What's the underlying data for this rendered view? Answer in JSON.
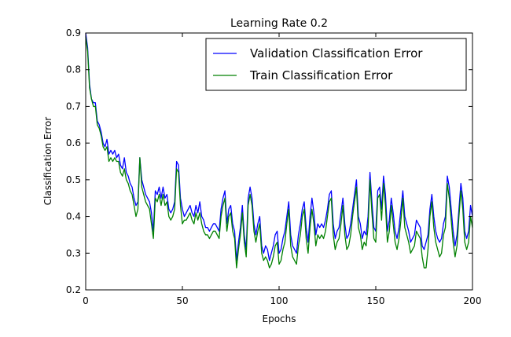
{
  "chart_data": {
    "type": "line",
    "title": "Learning Rate 0.2",
    "xlabel": "Epochs",
    "ylabel": "Classification Error",
    "xlim": [
      0,
      200
    ],
    "ylim": [
      0.2,
      0.9
    ],
    "xticks": [
      "0",
      "50",
      "100",
      "150",
      "200"
    ],
    "yticks": [
      "0.2",
      "0.3",
      "0.4",
      "0.5",
      "0.6",
      "0.7",
      "0.8",
      "0.9"
    ],
    "legend_position": "top-right",
    "grid": false,
    "series": [
      {
        "name": "Validation Classification Error",
        "color": "#0000ff",
        "x": [
          0,
          1,
          2,
          3,
          4,
          5,
          6,
          7,
          8,
          9,
          10,
          11,
          12,
          13,
          14,
          15,
          16,
          17,
          18,
          19,
          20,
          21,
          22,
          23,
          24,
          25,
          26,
          27,
          28,
          29,
          30,
          31,
          32,
          33,
          34,
          35,
          36,
          37,
          38,
          39,
          40,
          41,
          42,
          43,
          44,
          45,
          46,
          47,
          48,
          49,
          50,
          51,
          52,
          53,
          54,
          55,
          56,
          57,
          58,
          59,
          60,
          61,
          62,
          63,
          64,
          65,
          66,
          67,
          68,
          69,
          70,
          71,
          72,
          73,
          74,
          75,
          76,
          77,
          78,
          79,
          80,
          81,
          82,
          83,
          84,
          85,
          86,
          87,
          88,
          89,
          90,
          91,
          92,
          93,
          94,
          95,
          96,
          97,
          98,
          99,
          100,
          101,
          102,
          103,
          104,
          105,
          106,
          107,
          108,
          109,
          110,
          111,
          112,
          113,
          114,
          115,
          116,
          117,
          118,
          119,
          120,
          121,
          122,
          123,
          124,
          125,
          126,
          127,
          128,
          129,
          130,
          131,
          132,
          133,
          134,
          135,
          136,
          137,
          138,
          139,
          140,
          141,
          142,
          143,
          144,
          145,
          146,
          147,
          148,
          149,
          150,
          151,
          152,
          153,
          154,
          155,
          156,
          157,
          158,
          159,
          160,
          161,
          162,
          163,
          164,
          165,
          166,
          167,
          168,
          169,
          170,
          171,
          172,
          173,
          174,
          175,
          176,
          177,
          178,
          179,
          180,
          181,
          182,
          183,
          184,
          185,
          186,
          187,
          188,
          189,
          190,
          191,
          192,
          193,
          194,
          195,
          196,
          197,
          198,
          199,
          200
        ],
        "values": [
          0.9,
          0.86,
          0.76,
          0.72,
          0.71,
          0.71,
          0.66,
          0.65,
          0.63,
          0.6,
          0.59,
          0.61,
          0.57,
          0.58,
          0.57,
          0.58,
          0.56,
          0.57,
          0.54,
          0.53,
          0.56,
          0.52,
          0.51,
          0.49,
          0.48,
          0.45,
          0.43,
          0.44,
          0.56,
          0.5,
          0.48,
          0.46,
          0.45,
          0.44,
          0.41,
          0.36,
          0.47,
          0.46,
          0.48,
          0.45,
          0.48,
          0.45,
          0.46,
          0.42,
          0.41,
          0.42,
          0.44,
          0.55,
          0.54,
          0.45,
          0.42,
          0.4,
          0.41,
          0.42,
          0.43,
          0.41,
          0.4,
          0.43,
          0.41,
          0.44,
          0.4,
          0.39,
          0.37,
          0.37,
          0.36,
          0.37,
          0.38,
          0.38,
          0.37,
          0.36,
          0.42,
          0.45,
          0.47,
          0.38,
          0.42,
          0.43,
          0.38,
          0.36,
          0.28,
          0.33,
          0.37,
          0.43,
          0.35,
          0.31,
          0.45,
          0.48,
          0.45,
          0.38,
          0.35,
          0.38,
          0.4,
          0.32,
          0.3,
          0.32,
          0.31,
          0.28,
          0.3,
          0.32,
          0.35,
          0.36,
          0.3,
          0.31,
          0.34,
          0.36,
          0.4,
          0.44,
          0.35,
          0.32,
          0.31,
          0.3,
          0.35,
          0.38,
          0.42,
          0.44,
          0.37,
          0.33,
          0.4,
          0.45,
          0.41,
          0.35,
          0.38,
          0.37,
          0.38,
          0.37,
          0.39,
          0.42,
          0.46,
          0.47,
          0.38,
          0.34,
          0.36,
          0.37,
          0.41,
          0.45,
          0.38,
          0.34,
          0.35,
          0.38,
          0.42,
          0.46,
          0.5,
          0.4,
          0.38,
          0.34,
          0.36,
          0.35,
          0.4,
          0.52,
          0.44,
          0.37,
          0.36,
          0.47,
          0.48,
          0.42,
          0.51,
          0.46,
          0.36,
          0.39,
          0.45,
          0.41,
          0.36,
          0.34,
          0.37,
          0.42,
          0.47,
          0.4,
          0.38,
          0.36,
          0.33,
          0.34,
          0.35,
          0.39,
          0.38,
          0.37,
          0.32,
          0.31,
          0.33,
          0.35,
          0.42,
          0.46,
          0.4,
          0.36,
          0.34,
          0.33,
          0.34,
          0.38,
          0.4,
          0.51,
          0.48,
          0.42,
          0.36,
          0.32,
          0.35,
          0.42,
          0.49,
          0.45,
          0.36,
          0.34,
          0.36,
          0.43,
          0.4
        ]
      },
      {
        "name": "Train Classification Error",
        "color": "#008000",
        "x": [
          0,
          1,
          2,
          3,
          4,
          5,
          6,
          7,
          8,
          9,
          10,
          11,
          12,
          13,
          14,
          15,
          16,
          17,
          18,
          19,
          20,
          21,
          22,
          23,
          24,
          25,
          26,
          27,
          28,
          29,
          30,
          31,
          32,
          33,
          34,
          35,
          36,
          37,
          38,
          39,
          40,
          41,
          42,
          43,
          44,
          45,
          46,
          47,
          48,
          49,
          50,
          51,
          52,
          53,
          54,
          55,
          56,
          57,
          58,
          59,
          60,
          61,
          62,
          63,
          64,
          65,
          66,
          67,
          68,
          69,
          70,
          71,
          72,
          73,
          74,
          75,
          76,
          77,
          78,
          79,
          80,
          81,
          82,
          83,
          84,
          85,
          86,
          87,
          88,
          89,
          90,
          91,
          92,
          93,
          94,
          95,
          96,
          97,
          98,
          99,
          100,
          101,
          102,
          103,
          104,
          105,
          106,
          107,
          108,
          109,
          110,
          111,
          112,
          113,
          114,
          115,
          116,
          117,
          118,
          119,
          120,
          121,
          122,
          123,
          124,
          125,
          126,
          127,
          128,
          129,
          130,
          131,
          132,
          133,
          134,
          135,
          136,
          137,
          138,
          139,
          140,
          141,
          142,
          143,
          144,
          145,
          146,
          147,
          148,
          149,
          150,
          151,
          152,
          153,
          154,
          155,
          156,
          157,
          158,
          159,
          160,
          161,
          162,
          163,
          164,
          165,
          166,
          167,
          168,
          169,
          170,
          171,
          172,
          173,
          174,
          175,
          176,
          177,
          178,
          179,
          180,
          181,
          182,
          183,
          184,
          185,
          186,
          187,
          188,
          189,
          190,
          191,
          192,
          193,
          194,
          195,
          196,
          197,
          198,
          199,
          200
        ],
        "values": [
          0.89,
          0.85,
          0.75,
          0.72,
          0.7,
          0.7,
          0.65,
          0.64,
          0.62,
          0.59,
          0.58,
          0.59,
          0.55,
          0.56,
          0.55,
          0.56,
          0.55,
          0.55,
          0.52,
          0.51,
          0.53,
          0.5,
          0.49,
          0.47,
          0.46,
          0.43,
          0.4,
          0.42,
          0.56,
          0.48,
          0.46,
          0.44,
          0.43,
          0.42,
          0.38,
          0.34,
          0.45,
          0.44,
          0.46,
          0.43,
          0.46,
          0.43,
          0.44,
          0.4,
          0.39,
          0.4,
          0.42,
          0.53,
          0.52,
          0.43,
          0.38,
          0.39,
          0.39,
          0.4,
          0.41,
          0.39,
          0.38,
          0.41,
          0.39,
          0.41,
          0.38,
          0.36,
          0.35,
          0.35,
          0.34,
          0.35,
          0.36,
          0.36,
          0.35,
          0.34,
          0.4,
          0.43,
          0.45,
          0.36,
          0.4,
          0.41,
          0.36,
          0.34,
          0.26,
          0.31,
          0.35,
          0.41,
          0.33,
          0.29,
          0.43,
          0.46,
          0.43,
          0.36,
          0.33,
          0.36,
          0.38,
          0.3,
          0.28,
          0.29,
          0.28,
          0.26,
          0.27,
          0.29,
          0.32,
          0.33,
          0.27,
          0.28,
          0.31,
          0.33,
          0.38,
          0.42,
          0.32,
          0.29,
          0.28,
          0.27,
          0.32,
          0.35,
          0.4,
          0.42,
          0.34,
          0.3,
          0.37,
          0.42,
          0.38,
          0.32,
          0.35,
          0.34,
          0.35,
          0.34,
          0.36,
          0.4,
          0.44,
          0.45,
          0.35,
          0.31,
          0.33,
          0.34,
          0.38,
          0.43,
          0.35,
          0.31,
          0.32,
          0.35,
          0.4,
          0.44,
          0.48,
          0.37,
          0.35,
          0.31,
          0.33,
          0.32,
          0.37,
          0.5,
          0.41,
          0.34,
          0.33,
          0.45,
          0.46,
          0.39,
          0.49,
          0.43,
          0.33,
          0.36,
          0.43,
          0.38,
          0.33,
          0.31,
          0.34,
          0.39,
          0.45,
          0.37,
          0.35,
          0.33,
          0.3,
          0.31,
          0.32,
          0.36,
          0.35,
          0.34,
          0.29,
          0.26,
          0.26,
          0.31,
          0.4,
          0.44,
          0.37,
          0.33,
          0.31,
          0.29,
          0.3,
          0.35,
          0.37,
          0.49,
          0.45,
          0.39,
          0.33,
          0.29,
          0.32,
          0.4,
          0.47,
          0.42,
          0.33,
          0.31,
          0.33,
          0.4,
          0.37
        ]
      }
    ]
  }
}
